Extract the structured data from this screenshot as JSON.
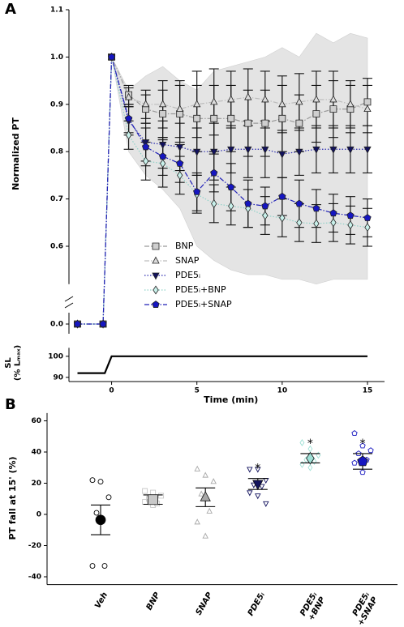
{
  "chart_data": [
    {
      "type": "line",
      "panel": "A",
      "ylabel": "Normalized PT",
      "xlim": [
        -2.5,
        16
      ],
      "ylim": [
        0,
        1.1
      ],
      "y_break": [
        0.02,
        0.52
      ],
      "yticks": [
        {
          "value": 0,
          "label": "0.0"
        },
        0.6,
        0.7,
        0.8,
        0.9,
        {
          "value": 1,
          "label": "1.0"
        },
        1.1
      ],
      "x": [
        -2,
        -0.5,
        0,
        1,
        2,
        3,
        4,
        5,
        6,
        7,
        8,
        9,
        10,
        11,
        12,
        13,
        14,
        15
      ],
      "band": {
        "color": "#e4e4e4",
        "x": [
          0,
          1,
          2,
          3,
          4,
          5,
          6,
          7,
          8,
          9,
          10,
          11,
          12,
          13,
          14,
          15
        ],
        "upper": [
          1.0,
          0.93,
          0.96,
          0.98,
          0.95,
          0.93,
          0.97,
          0.98,
          0.99,
          1.0,
          1.02,
          1.0,
          1.05,
          1.03,
          1.05,
          1.04
        ],
        "lower": [
          1.0,
          0.8,
          0.75,
          0.72,
          0.68,
          0.6,
          0.57,
          0.55,
          0.54,
          0.54,
          0.53,
          0.53,
          0.52,
          0.53,
          0.53,
          0.53
        ]
      },
      "legend": "lower center",
      "series": [
        {
          "name": "BNP",
          "color": "#cfcfcf",
          "line_color": "#9a9a9a",
          "linestyle": "dashdot",
          "marker": "square",
          "values": [
            0,
            0,
            1.0,
            0.92,
            0.89,
            0.88,
            0.88,
            0.87,
            0.87,
            0.87,
            0.86,
            0.86,
            0.87,
            0.86,
            0.88,
            0.89,
            0.89,
            0.905
          ],
          "errors": [
            0,
            0,
            0,
            0.02,
            0.03,
            0.05,
            0.06,
            0.07,
            0.07,
            0.07,
            0.07,
            0.07,
            0.07,
            0.06,
            0.06,
            0.06,
            0.05,
            0.05
          ]
        },
        {
          "name": "SNAP",
          "color": "#dcdcdc",
          "line_color": "#bdbdbd",
          "linestyle": "dashdot",
          "marker": "triangle-up",
          "values": [
            0,
            0,
            1.0,
            0.915,
            0.9,
            0.9,
            0.89,
            0.9,
            0.905,
            0.91,
            0.915,
            0.91,
            0.9,
            0.905,
            0.91,
            0.91,
            0.9,
            0.89
          ],
          "errors": [
            0,
            0,
            0,
            0.02,
            0.03,
            0.05,
            0.06,
            0.07,
            0.07,
            0.06,
            0.06,
            0.06,
            0.06,
            0.06,
            0.06,
            0.06,
            0.05,
            0.05
          ]
        },
        {
          "name": "PDE5ᵢ",
          "color": "#12125e",
          "line_color": "#2a2ab0",
          "linestyle": "dotted",
          "marker": "triangle-down",
          "values": [
            0,
            0,
            1.0,
            0.865,
            0.82,
            0.815,
            0.81,
            0.8,
            0.8,
            0.805,
            0.805,
            0.805,
            0.795,
            0.8,
            0.805,
            0.805,
            0.805,
            0.805
          ],
          "errors": [
            0,
            0,
            0,
            0.03,
            0.04,
            0.05,
            0.05,
            0.05,
            0.06,
            0.05,
            0.06,
            0.06,
            0.05,
            0.05,
            0.05,
            0.05,
            0.05,
            0.05
          ]
        },
        {
          "name": "PDE5ᵢ+BNP",
          "color": "#c8f0ea",
          "line_color": "#8fd2c8",
          "linestyle": "dotted",
          "marker": "diamond",
          "values": [
            0,
            0,
            1.0,
            0.835,
            0.78,
            0.775,
            0.75,
            0.71,
            0.69,
            0.685,
            0.68,
            0.665,
            0.66,
            0.65,
            0.648,
            0.65,
            0.645,
            0.64
          ],
          "errors": [
            0,
            0,
            0,
            0.03,
            0.04,
            0.05,
            0.04,
            0.04,
            0.04,
            0.04,
            0.04,
            0.04,
            0.04,
            0.04,
            0.04,
            0.04,
            0.04,
            0.04
          ]
        },
        {
          "name": "PDE5ᵢ+SNAP",
          "color": "#1616c0",
          "line_color": "#2020b8",
          "linestyle": "dashdot",
          "marker": "pentagon",
          "values": [
            0,
            0,
            1.0,
            0.87,
            0.81,
            0.79,
            0.775,
            0.715,
            0.755,
            0.725,
            0.69,
            0.685,
            0.705,
            0.69,
            0.68,
            0.67,
            0.665,
            0.66
          ],
          "errors": [
            0,
            0,
            0,
            0.03,
            0.04,
            0.04,
            0.04,
            0.04,
            0.04,
            0.05,
            0.05,
            0.04,
            0.04,
            0.05,
            0.04,
            0.04,
            0.04,
            0.04
          ]
        }
      ]
    },
    {
      "type": "line",
      "ylabel": "SL\n(% Lₘₐₓ)",
      "xlabel": "Time (min)",
      "xlim": [
        -2.5,
        16
      ],
      "ylim": [
        88,
        104
      ],
      "xticks": [
        0,
        5,
        10,
        15
      ],
      "yticks": [
        90,
        100
      ],
      "x": [
        -2,
        -0.4,
        0,
        15
      ],
      "values": [
        92,
        92,
        100,
        100
      ],
      "color": "#000000"
    },
    {
      "type": "dot",
      "panel": "B",
      "ylabel": "PT fall at 15' (%)",
      "ylim": [
        -45,
        65
      ],
      "yticks": [
        -40,
        -20,
        0,
        20,
        40,
        60
      ],
      "categories": [
        "Veh",
        "BNP",
        "SNAP",
        "PDE5ᵢ",
        "PDE5ᵢ\n+BNP",
        "PDE5ᵢ\n+SNAP"
      ],
      "colors": [
        "#000000",
        "#c8c8c8",
        "#a8a8a8",
        "#12125e",
        "#9fe0d6",
        "#1616c0"
      ],
      "markers": [
        "circle",
        "square",
        "triangle-up",
        "triangle-down",
        "diamond",
        "pentagon"
      ],
      "means": [
        -3.5,
        9.5,
        11,
        19.5,
        36,
        34
      ],
      "errors": [
        9.5,
        3,
        6,
        3.5,
        3,
        5
      ],
      "points": [
        [
          22,
          21,
          11,
          1,
          -33,
          -33
        ],
        [
          15,
          14,
          12,
          10,
          7,
          8,
          6
        ],
        [
          29,
          25,
          21,
          13,
          2,
          -5,
          -14
        ],
        [
          29,
          29,
          22,
          19,
          18,
          14,
          12,
          7
        ],
        [
          46,
          42,
          38,
          35,
          34,
          32,
          30
        ],
        [
          52,
          44,
          41,
          39,
          35,
          33,
          27
        ]
      ],
      "annotations": [
        null,
        null,
        null,
        "*",
        "*",
        "*"
      ]
    }
  ]
}
